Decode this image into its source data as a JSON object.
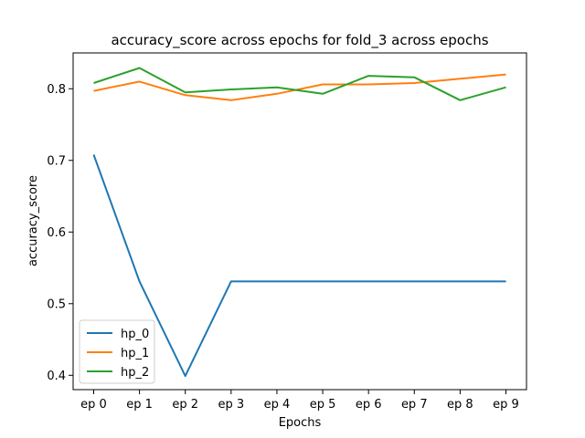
{
  "chart_data": {
    "type": "line",
    "title": "accuracy_score across epochs for fold_3 across epochs",
    "xlabel": "Epochs",
    "ylabel": "accuracy_score",
    "categories": [
      "ep 0",
      "ep 1",
      "ep 2",
      "ep 3",
      "ep 4",
      "ep 5",
      "ep 6",
      "ep 7",
      "ep 8",
      "ep 9"
    ],
    "ylim": [
      0.38,
      0.85
    ],
    "yticks": [
      0.4,
      0.5,
      0.6,
      0.7,
      0.8
    ],
    "ytick_labels": [
      "0.4",
      "0.5",
      "0.6",
      "0.7",
      "0.8"
    ],
    "grid": false,
    "legend_position": "lower-left",
    "series": [
      {
        "name": "hp_0",
        "color": "#1f77b4",
        "values": [
          0.708,
          0.531,
          0.399,
          0.531,
          0.531,
          0.531,
          0.531,
          0.531,
          0.531,
          0.531
        ]
      },
      {
        "name": "hp_1",
        "color": "#ff7f0e",
        "values": [
          0.797,
          0.81,
          0.791,
          0.784,
          0.793,
          0.806,
          0.806,
          0.808,
          0.814,
          0.82
        ]
      },
      {
        "name": "hp_2",
        "color": "#2ca02c",
        "values": [
          0.808,
          0.829,
          0.795,
          0.799,
          0.802,
          0.793,
          0.818,
          0.816,
          0.784,
          0.802
        ]
      }
    ]
  }
}
